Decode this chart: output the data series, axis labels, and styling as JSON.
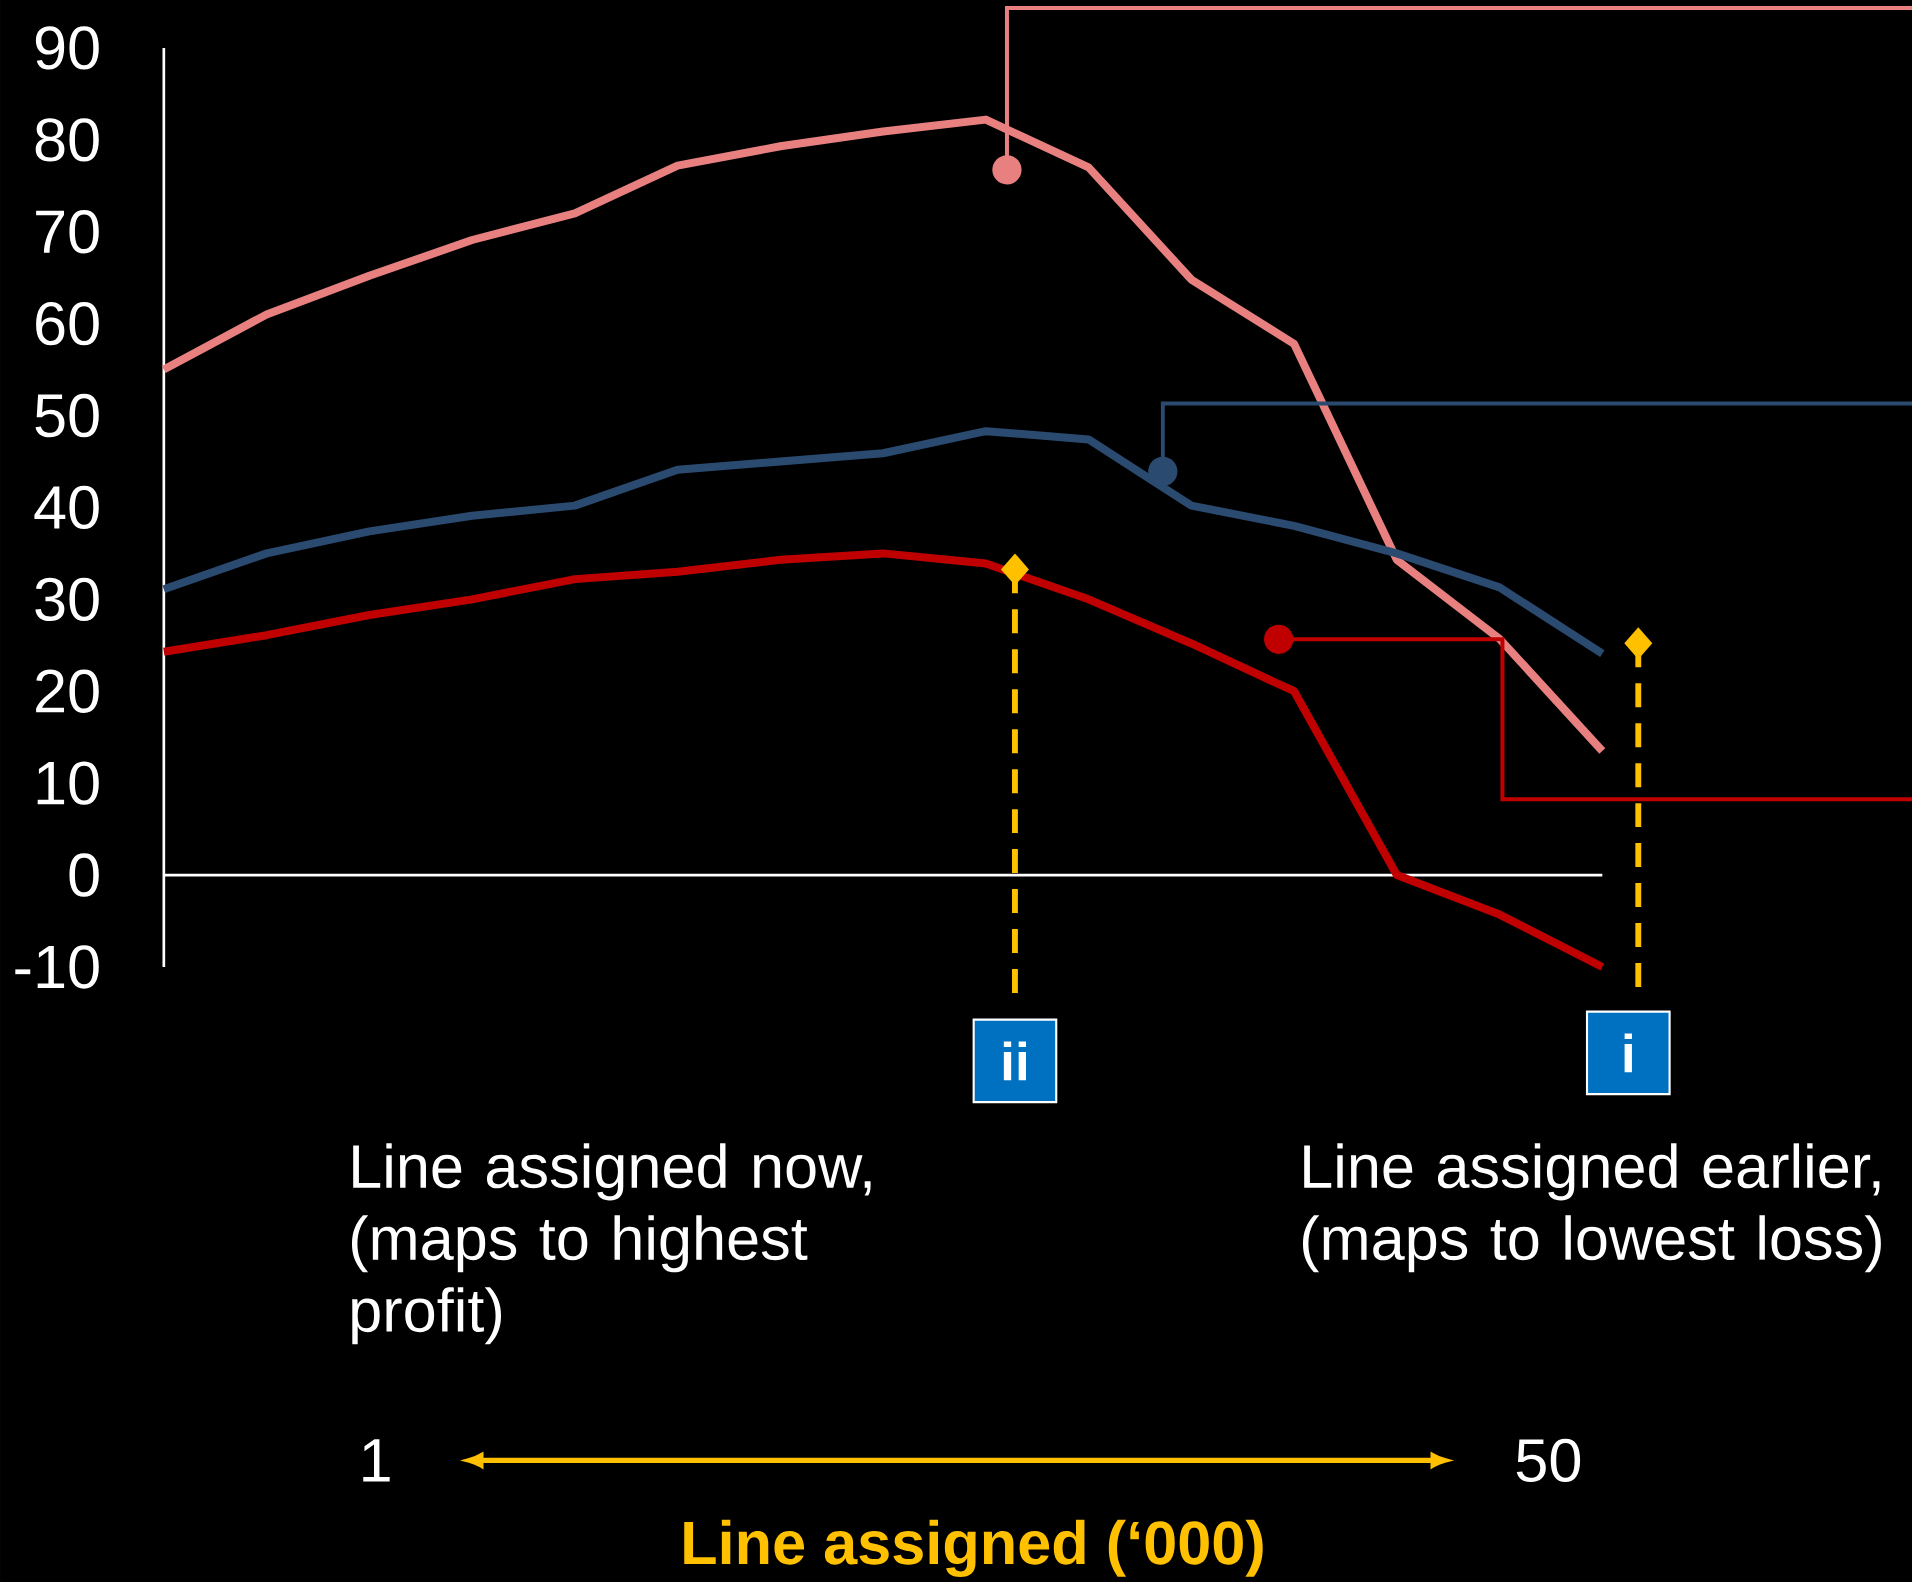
{
  "chart_data": {
    "type": "line",
    "categories": [
      null,
      null,
      null,
      null,
      null,
      null,
      null,
      null,
      null,
      null,
      null,
      null,
      null,
      null,
      null
    ],
    "series": [
      {
        "color": "#e88080",
        "values": [
          55,
          61,
          65.2,
          69.1,
          72,
          77.2,
          79.3,
          80.9,
          82.2,
          77,
          64.8,
          57.8,
          34.3,
          25.7,
          13.5
        ]
      },
      {
        "color": "#2a4a70",
        "values": [
          31.1,
          35,
          37.4,
          39.1,
          40.2,
          44.1,
          45,
          45.9,
          48.3,
          47.4,
          40.2,
          38,
          35,
          31.3,
          24.1
        ]
      },
      {
        "color": "#c00000",
        "values": [
          24.3,
          26.1,
          28.3,
          30,
          32.2,
          33,
          34.3,
          35,
          33.9,
          30,
          25.2,
          20,
          0,
          -4.3,
          -10
        ]
      }
    ],
    "ylim": [
      -10,
      90
    ],
    "yticks": [
      -10,
      0,
      10,
      20,
      30,
      40,
      50,
      60,
      70,
      80,
      90
    ],
    "annotations": [
      "Line assigned now, (maps to highest profit)",
      "Line assigned earlier, (maps to lowest loss)",
      "1",
      "50",
      "ii",
      "i",
      "Line assigned (‘000)"
    ]
  }
}
